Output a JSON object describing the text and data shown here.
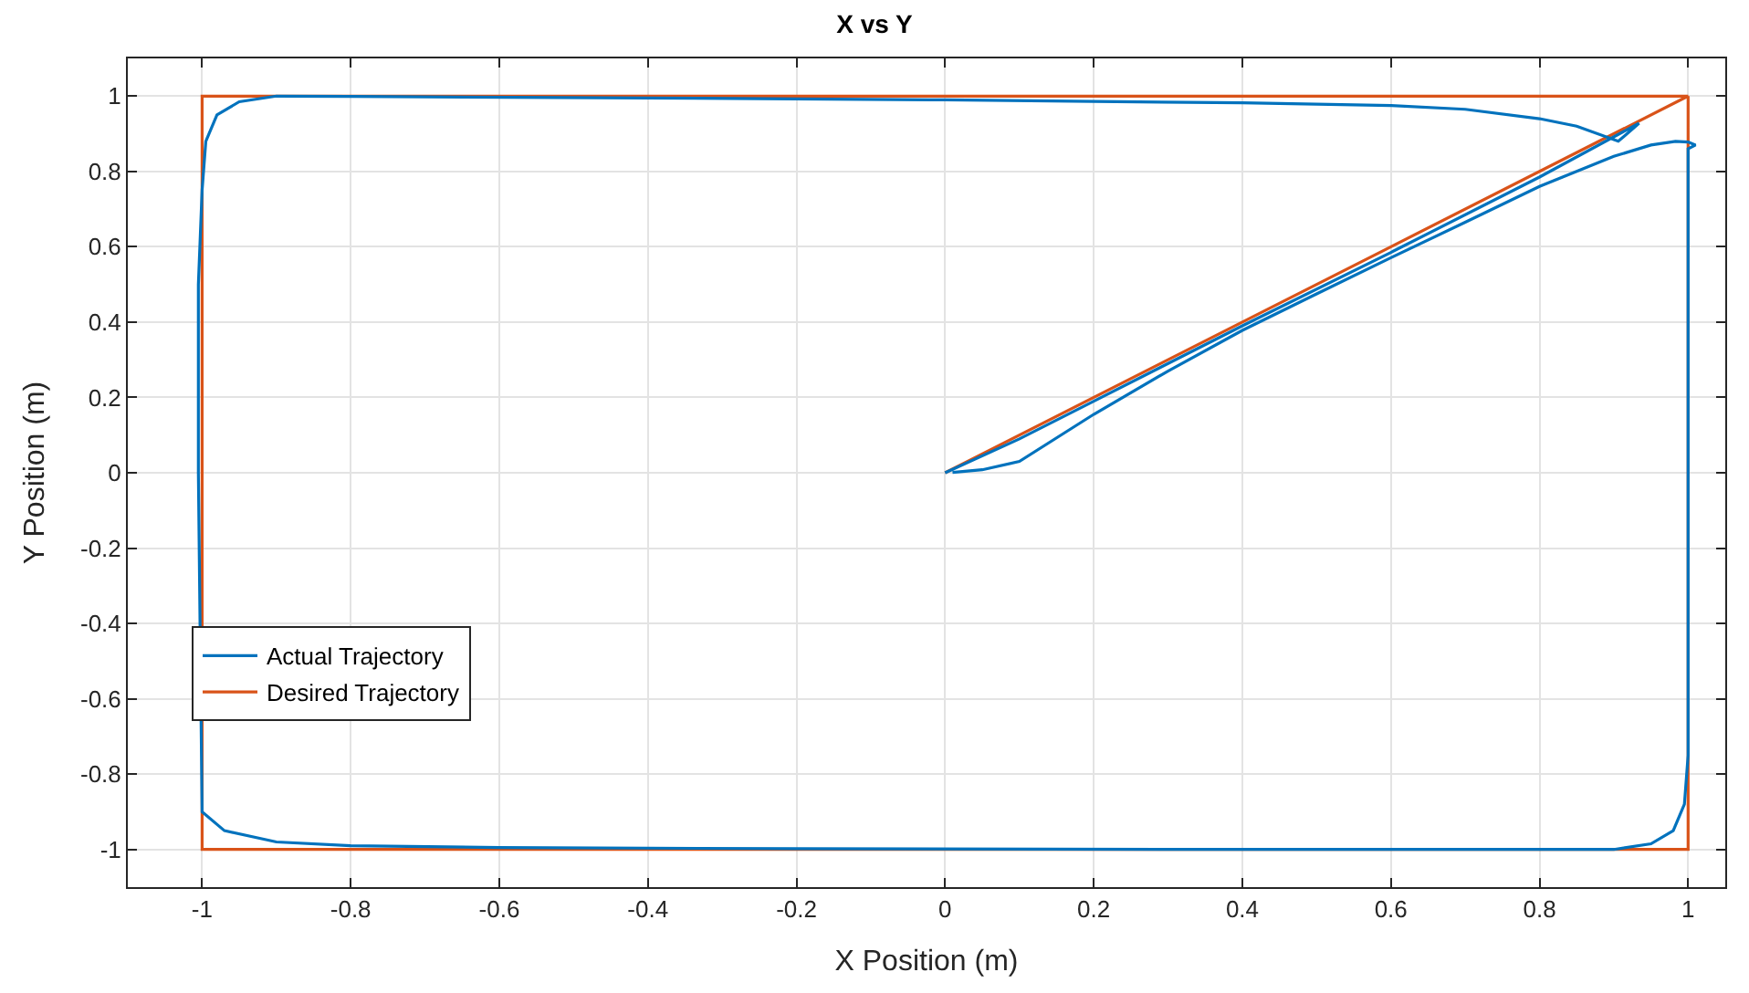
{
  "chart_data": {
    "type": "line",
    "title": "X vs Y",
    "xlabel": "X Position (m)",
    "ylabel": "Y Position (m)",
    "xlim": [
      -1.1,
      1.05
    ],
    "ylim": [
      -1.1,
      1.1
    ],
    "xticks": [
      -1,
      -0.8,
      -0.6,
      -0.4,
      -0.2,
      0,
      0.2,
      0.4,
      0.6,
      0.8,
      1
    ],
    "yticks": [
      -1,
      -0.8,
      -0.6,
      -0.4,
      -0.2,
      0,
      0.2,
      0.4,
      0.6,
      0.8,
      1
    ],
    "grid": true,
    "legend": "bottom left",
    "line_style": "solid",
    "series": [
      {
        "name": "Actual Trajectory",
        "color": "#0072bd",
        "x": [
          0,
          0.1,
          0.2,
          0.4,
          0.6,
          0.8,
          0.934,
          0.906,
          0.85,
          0.8,
          0.7,
          0.6,
          0.4,
          0.2,
          0,
          -0.4,
          -0.8,
          -0.9,
          -0.95,
          -0.98,
          -0.995,
          -1.0,
          -1.005,
          -1.005,
          -1.0,
          -0.97,
          -0.9,
          -0.8,
          -0.6,
          -0.2,
          0.4,
          0.9,
          0.95,
          0.98,
          0.995,
          1.0,
          1.0,
          1.0,
          1.01,
          1.0,
          0.983,
          0.95,
          0.9,
          0.8,
          0.7,
          0.6,
          0.5,
          0.4,
          0.3,
          0.2,
          0.1,
          0.05,
          0.01
        ],
        "values": [
          0,
          0.09,
          0.19,
          0.39,
          0.585,
          0.785,
          0.928,
          0.88,
          0.92,
          0.94,
          0.965,
          0.975,
          0.982,
          0.986,
          0.99,
          0.995,
          0.999,
          1.0,
          0.985,
          0.95,
          0.88,
          0.75,
          0.5,
          0,
          -0.9,
          -0.95,
          -0.98,
          -0.99,
          -0.995,
          -0.998,
          -1.0,
          -1.0,
          -0.985,
          -0.95,
          -0.88,
          -0.75,
          0,
          0.86,
          0.87,
          0.878,
          0.88,
          0.87,
          0.84,
          0.76,
          0.665,
          0.571,
          0.475,
          0.378,
          0.27,
          0.155,
          0.03,
          0.008,
          0.001
        ]
      },
      {
        "name": "Desired Trajectory",
        "color": "#d95319",
        "x": [
          0,
          1,
          -1,
          -1,
          1,
          1
        ],
        "values": [
          0,
          1,
          1,
          -1,
          -1,
          1
        ]
      }
    ]
  }
}
